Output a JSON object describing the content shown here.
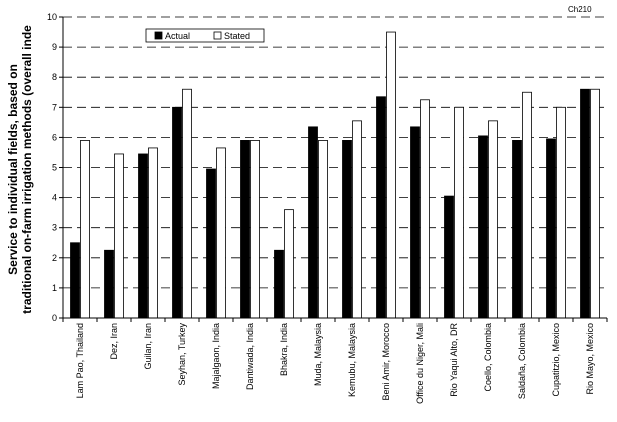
{
  "chart_data": {
    "type": "bar",
    "chart_code": "Ch210",
    "ylabel_lines": [
      "Service to individual fields, based on",
      "traditional on-farm irrigation methods (overall inde"
    ],
    "xlabel": "",
    "ylim": [
      0,
      10
    ],
    "yticks": [
      0,
      1,
      2,
      3,
      4,
      5,
      6,
      7,
      8,
      9,
      10
    ],
    "grid": "dashed horizontal",
    "legend_position": "top-left",
    "categories": [
      "Lam Pao, Thailand",
      "Dez, Iran",
      "Guilan, Iran",
      "Seyhan, Turkey",
      "Majalgaon, India",
      "Dantiwada, India",
      "Bhakra, India",
      "Muda, Malaysia",
      "Kemubu, Malaysia",
      "Beni Amir, Morocco",
      "Office du Niger, Mali",
      "Rio Yaqui Alto, DR",
      "Coello, Colombia",
      "Saldaña, Colombia",
      "Cupatitzio, Mexico",
      "Rio Mayo, Mexico"
    ],
    "series": [
      {
        "name": "Actual",
        "color": "#000000",
        "values": [
          2.5,
          2.25,
          5.45,
          7.0,
          4.95,
          5.9,
          2.25,
          6.35,
          5.9,
          7.35,
          6.35,
          4.05,
          6.05,
          5.9,
          5.95,
          7.6
        ]
      },
      {
        "name": "Stated",
        "color": "#ffffff",
        "values": [
          5.9,
          5.45,
          5.65,
          7.6,
          5.65,
          5.9,
          3.6,
          5.9,
          6.55,
          9.5,
          7.25,
          7.0,
          6.55,
          7.5,
          7.0,
          7.6
        ]
      }
    ]
  }
}
